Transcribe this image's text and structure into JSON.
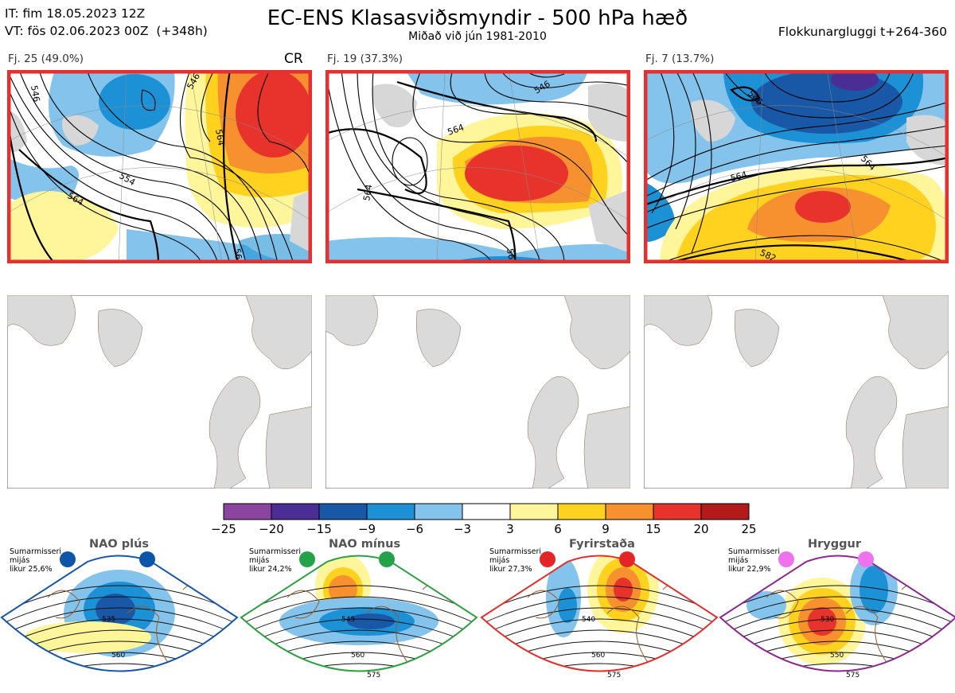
{
  "header": {
    "it": "IT: fim 18.05.2023 12Z",
    "vt": "VT: fös 02.06.2023 00Z",
    "lead": "(+348h)",
    "title": "EC-ENS Klasasviðsmyndir - 500 hPa hæð",
    "subtitle": "Miðað við jún 1981-2010",
    "window": "Flokkunargluggi t+264-360"
  },
  "clusters": [
    {
      "label": "Fj. 25 (49.0%)",
      "regime": "CR",
      "members": 25,
      "percent": 49.0,
      "contours": [
        "546",
        "554",
        "564",
        "564",
        "546",
        "56"
      ]
    },
    {
      "label": "Fj. 19 (37.3%)",
      "regime": "",
      "members": 19,
      "percent": 37.3,
      "contours": [
        "546",
        "564",
        "56",
        "564"
      ]
    },
    {
      "label": "Fj. 7 (13.7%)",
      "regime": "",
      "members": 7,
      "percent": 13.7,
      "contours": [
        "564",
        "564",
        "582",
        "546"
      ]
    }
  ],
  "colorbar": {
    "ticks": [
      "−25",
      "−20",
      "−15",
      "−9",
      "−6",
      "−3",
      "3",
      "6",
      "9",
      "15",
      "20",
      "25"
    ],
    "colors": [
      "#8b44a0",
      "#4b2d96",
      "#1958a6",
      "#1d91d6",
      "#84c3ec",
      "#ffffff",
      "#fff59a",
      "#ffd21f",
      "#f7902e",
      "#e8332d",
      "#b31b1b"
    ]
  },
  "regimes": [
    {
      "name": "NAO plús",
      "desc": [
        "Sumarmisseri",
        "mijás",
        "likur 25,6%"
      ],
      "color": "#1a56a5",
      "dot": "#0c55a8",
      "contours": [
        "535",
        "560"
      ]
    },
    {
      "name": "NAO mínus",
      "desc": [
        "Sumarmisseri",
        "mijás",
        "likur 24,2%"
      ],
      "color": "#2ea043",
      "dot": "#23a24a",
      "contours": [
        "545",
        "560",
        "575"
      ]
    },
    {
      "name": "Fyrirstaða",
      "desc": [
        "Sumarmisseri",
        "mijás",
        "likur 27,3%"
      ],
      "color": "#e0302d",
      "dot": "#e32527",
      "contours": [
        "540",
        "560",
        "575"
      ]
    },
    {
      "name": "Hryggur",
      "desc": [
        "Sumarmisseri",
        "mijás",
        "likur 22,9%"
      ],
      "color": "#8a2a8f",
      "dot": "#ee72ee",
      "contours": [
        "530",
        "550",
        "575"
      ]
    }
  ]
}
